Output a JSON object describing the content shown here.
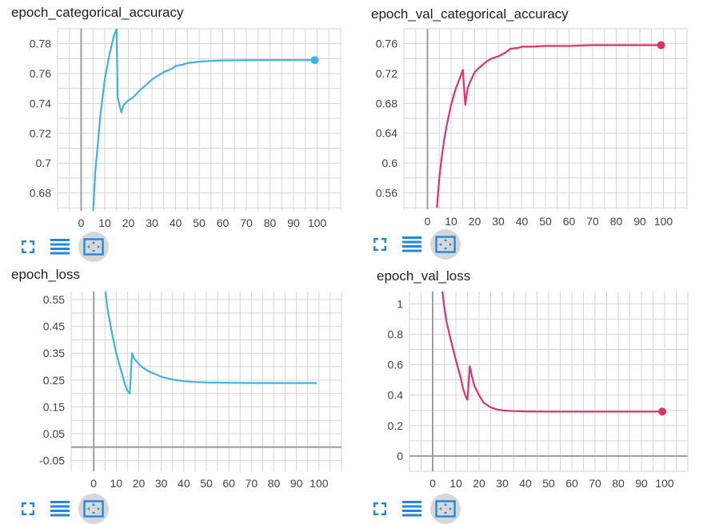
{
  "colors": {
    "train": "#3db2e6",
    "val": "#e0316b",
    "icon": "#1e88e5"
  },
  "toolbar_icons": [
    "expand-icon",
    "data-table-icon",
    "fit-domain-icon"
  ],
  "chart_data": [
    {
      "type": "line",
      "title": "epoch_categorical_accuracy",
      "series_color": "#3db2e6",
      "xlim": [
        -10,
        110
      ],
      "ylim": [
        0.668,
        0.79
      ],
      "xticks": [
        0,
        10,
        20,
        30,
        40,
        50,
        60,
        70,
        80,
        90,
        100
      ],
      "yticks": [
        0.68,
        0.7,
        0.72,
        0.74,
        0.76,
        0.78
      ],
      "ytick_labels": [
        "0.68",
        "0.7",
        "0.72",
        "0.74",
        "0.76",
        "0.78"
      ],
      "x": [
        5,
        6,
        7,
        8,
        10,
        12,
        14,
        15,
        15.5,
        17,
        18,
        20,
        22,
        25,
        28,
        30,
        33,
        35,
        38,
        40,
        43,
        45,
        50,
        55,
        60,
        70,
        80,
        90,
        99
      ],
      "y": [
        0.665,
        0.695,
        0.712,
        0.73,
        0.756,
        0.773,
        0.786,
        0.79,
        0.744,
        0.734,
        0.739,
        0.742,
        0.744,
        0.749,
        0.753,
        0.756,
        0.759,
        0.761,
        0.763,
        0.765,
        0.766,
        0.767,
        0.768,
        0.7685,
        0.7688,
        0.7689,
        0.769,
        0.769,
        0.769
      ],
      "end_marker": true
    },
    {
      "type": "line",
      "title": "epoch_val_categorical_accuracy",
      "series_color": "#e0316b",
      "xlim": [
        -10,
        110
      ],
      "ylim": [
        0.538,
        0.78
      ],
      "xticks": [
        0,
        10,
        20,
        30,
        40,
        50,
        60,
        70,
        80,
        90,
        100
      ],
      "yticks": [
        0.56,
        0.6,
        0.64,
        0.68,
        0.72,
        0.76
      ],
      "ytick_labels": [
        "0.56",
        "0.6",
        "0.64",
        "0.68",
        "0.72",
        "0.76"
      ],
      "x": [
        4,
        5,
        6,
        7,
        8,
        10,
        12,
        14,
        15,
        16,
        17,
        18,
        20,
        22,
        25,
        27,
        30,
        33,
        35,
        37,
        38,
        40,
        45,
        50,
        60,
        70,
        80,
        90,
        99
      ],
      "y": [
        0.54,
        0.58,
        0.607,
        0.63,
        0.648,
        0.678,
        0.7,
        0.716,
        0.725,
        0.678,
        0.7,
        0.708,
        0.722,
        0.728,
        0.736,
        0.74,
        0.743,
        0.748,
        0.753,
        0.754,
        0.754,
        0.756,
        0.756,
        0.757,
        0.757,
        0.758,
        0.758,
        0.758,
        0.758
      ],
      "end_marker": true
    },
    {
      "type": "line",
      "title": "epoch_loss",
      "series_color": "#3db2e6",
      "xlim": [
        -10,
        110
      ],
      "ylim": [
        -0.09,
        0.58
      ],
      "xticks": [
        0,
        10,
        20,
        30,
        40,
        50,
        60,
        70,
        80,
        90,
        100
      ],
      "yticks": [
        -0.05,
        0.05,
        0.15,
        0.25,
        0.35,
        0.45,
        0.55
      ],
      "ytick_labels": [
        "-0.05",
        "0.05",
        "0.15",
        "0.25",
        "0.35",
        "0.45",
        "0.55"
      ],
      "x": [
        5,
        6,
        8,
        10,
        12,
        14,
        15,
        16,
        17,
        18,
        20,
        22,
        25,
        28,
        30,
        35,
        40,
        45,
        50,
        60,
        70,
        80,
        90,
        99
      ],
      "y": [
        0.6,
        0.52,
        0.43,
        0.35,
        0.29,
        0.23,
        0.21,
        0.2,
        0.35,
        0.33,
        0.31,
        0.295,
        0.28,
        0.27,
        0.262,
        0.252,
        0.246,
        0.243,
        0.241,
        0.24,
        0.239,
        0.239,
        0.239,
        0.239
      ],
      "end_marker": false
    },
    {
      "type": "line",
      "title": "epoch_val_loss",
      "series_color": "#e0316b",
      "xlim": [
        -10,
        110
      ],
      "ylim": [
        -0.1,
        1.08
      ],
      "xticks": [
        0,
        10,
        20,
        30,
        40,
        50,
        60,
        70,
        80,
        90,
        100
      ],
      "yticks": [
        0,
        0.2,
        0.4,
        0.6,
        0.8,
        1
      ],
      "ytick_labels": [
        "0",
        "0.2",
        "0.4",
        "0.6",
        "0.8",
        "1"
      ],
      "x": [
        4,
        5,
        6,
        8,
        10,
        12,
        13,
        14,
        15,
        16,
        17,
        18,
        20,
        22,
        25,
        28,
        30,
        35,
        40,
        50,
        60,
        70,
        80,
        90,
        99
      ],
      "y": [
        1.1,
        0.98,
        0.88,
        0.75,
        0.63,
        0.52,
        0.45,
        0.4,
        0.37,
        0.59,
        0.52,
        0.46,
        0.4,
        0.35,
        0.32,
        0.305,
        0.3,
        0.295,
        0.293,
        0.292,
        0.292,
        0.292,
        0.292,
        0.292,
        0.292
      ],
      "end_marker": true
    }
  ]
}
